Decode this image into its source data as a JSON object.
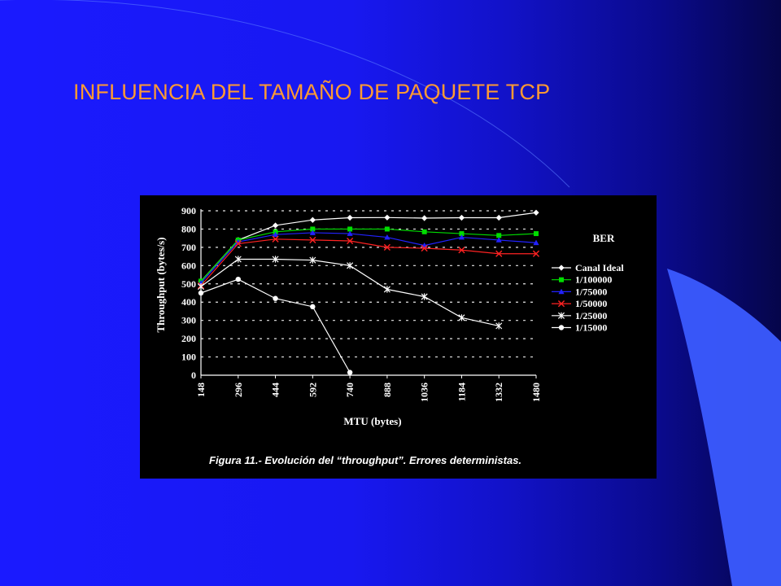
{
  "slide": {
    "title": "INFLUENCIA DEL TAMAÑO DE PAQUETE TCP",
    "title_color": "#ff9a33",
    "background_colors": [
      "#1a1aff",
      "#05054a"
    ],
    "accent_color": "#3b5bff"
  },
  "chart_data": {
    "type": "line",
    "caption": "Figura 11.- Evolución del “throughput”. Errores deterministas.",
    "xlabel": "MTU (bytes)",
    "ylabel": "Throughput (bytes/s)",
    "legend_title": "BER",
    "legend_position": "right",
    "grid": "dotted horizontal",
    "ylim": [
      0,
      900
    ],
    "yticks": [
      "0",
      "100",
      "200",
      "300",
      "400",
      "500",
      "600",
      "700",
      "800",
      "900"
    ],
    "categories": [
      "148",
      "296",
      "444",
      "592",
      "740",
      "888",
      "1036",
      "1184",
      "1332",
      "1480"
    ],
    "series": [
      {
        "name": "Canal Ideal",
        "color": "#ffffff",
        "marker": "diamond",
        "values": [
          515,
          740,
          820,
          850,
          862,
          863,
          860,
          862,
          862,
          890
        ]
      },
      {
        "name": "1/100000",
        "color": "#00dd00",
        "marker": "square",
        "values": [
          515,
          740,
          785,
          800,
          800,
          800,
          785,
          775,
          765,
          775
        ]
      },
      {
        "name": "1/75000",
        "color": "#2222ff",
        "marker": "triangle",
        "values": [
          505,
          730,
          770,
          780,
          775,
          755,
          710,
          755,
          740,
          725
        ]
      },
      {
        "name": "1/50000",
        "color": "#ff2222",
        "marker": "x",
        "values": [
          490,
          720,
          745,
          740,
          735,
          700,
          695,
          685,
          665,
          665
        ]
      },
      {
        "name": "1/25000",
        "color": "#ffffff",
        "marker": "star",
        "values": [
          485,
          635,
          635,
          630,
          600,
          470,
          430,
          315,
          270,
          null
        ]
      },
      {
        "name": "1/15000",
        "color": "#ffffff",
        "marker": "circle",
        "values": [
          450,
          525,
          420,
          375,
          15,
          null,
          null,
          null,
          null,
          null
        ]
      }
    ]
  }
}
